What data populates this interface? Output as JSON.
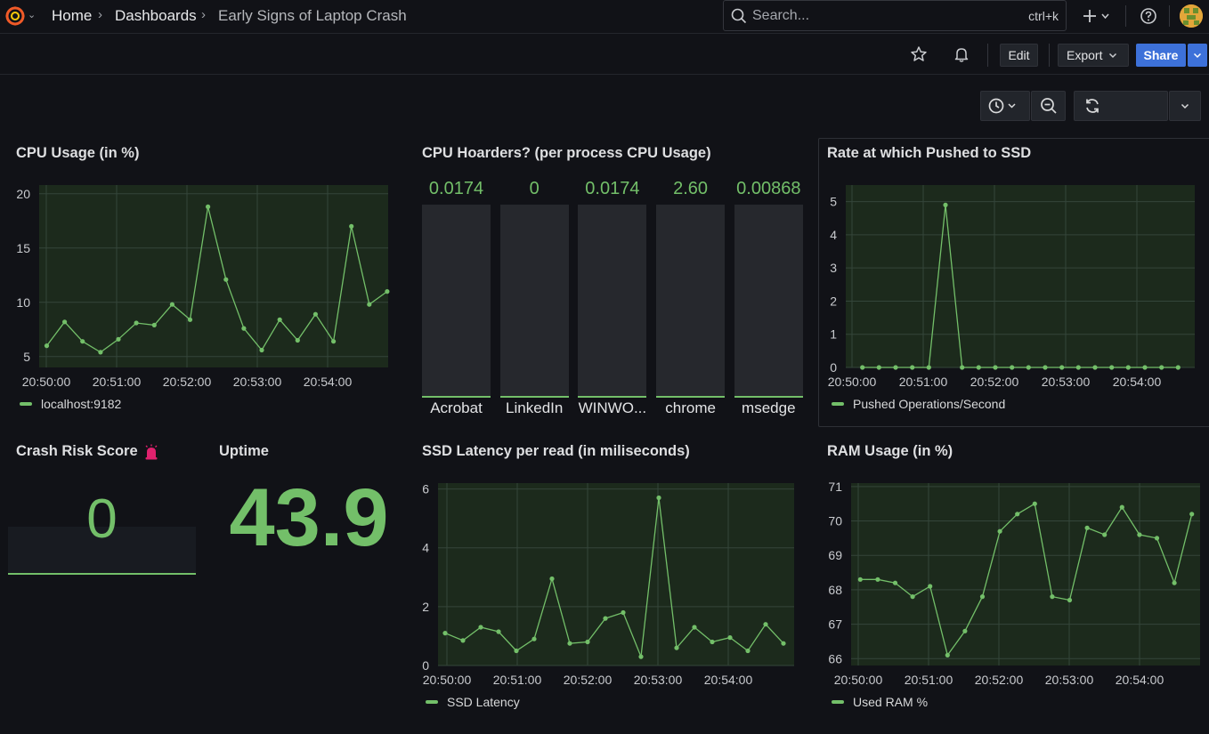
{
  "breadcrumb": {
    "home": "Home",
    "dashboards": "Dashboards",
    "current": "Early Signs of Laptop Crash"
  },
  "search": {
    "placeholder": "Search...",
    "shortcut": "ctrl+k"
  },
  "icons": {
    "logo": "grafana-logo-icon",
    "search": "search-icon",
    "add": "plus-icon",
    "help": "help-icon",
    "star": "star-icon",
    "bell": "bell-icon",
    "time": "clock-icon",
    "zoom": "zoom-out-icon",
    "refresh": "refresh-icon"
  },
  "toolbar": {
    "edit_label": "Edit",
    "export_label": "Export",
    "share_label": "Share"
  },
  "colors": {
    "series": "#73bf69",
    "background": "#111217",
    "accent": "#3d71d9",
    "plot_bg": "#1c2a1c"
  },
  "panels": {
    "cpu_usage": {
      "title": "CPU Usage (in %)",
      "legend": "localhost:9182"
    },
    "cpu_hoarders": {
      "title": "CPU Hoarders? (per process CPU Usage)"
    },
    "rate_ssd": {
      "title": "Rate at which Pushed to SSD",
      "legend": "Pushed Operations/Second"
    },
    "crash_risk": {
      "title": "Crash Risk Score",
      "value": "0"
    },
    "uptime": {
      "title": "Uptime",
      "value": "43.9"
    },
    "ssd_latency": {
      "title": "SSD Latency per read (in miliseconds)",
      "legend": "SSD Latency"
    },
    "ram_usage": {
      "title": "RAM Usage (in %)",
      "legend": "Used RAM %"
    }
  },
  "chart_data": [
    {
      "type": "line",
      "title": "CPU Usage (in %)",
      "x_ticks": [
        "20:50:00",
        "20:51:00",
        "20:52:00",
        "20:53:00",
        "20:54:00"
      ],
      "y_ticks": [
        5,
        10,
        15,
        20
      ],
      "ylim": [
        4,
        20.8
      ],
      "xlim": [
        0,
        37
      ],
      "series": [
        {
          "name": "localhost:9182",
          "values": [
            6.0,
            8.2,
            6.4,
            5.4,
            6.6,
            8.1,
            7.9,
            9.8,
            8.4,
            18.8,
            12.1,
            7.6,
            5.6,
            8.4,
            6.5,
            8.9,
            6.4,
            17.0,
            9.8,
            11.0
          ]
        }
      ]
    },
    {
      "type": "bar",
      "title": "CPU Hoarders? (per process CPU Usage)",
      "categories": [
        "Acrobat",
        "LinkedIn",
        "WINWO...",
        "chrome",
        "msedge"
      ],
      "display_values": [
        "0.0174",
        "0",
        "0.0174",
        "2.60",
        "0.00868"
      ],
      "values": [
        0.0174,
        0,
        0.0174,
        2.6,
        0.00868
      ]
    },
    {
      "type": "line",
      "title": "Rate at which Pushed to SSD",
      "x_ticks": [
        "20:50:00",
        "20:51:00",
        "20:52:00",
        "20:53:00",
        "20:54:00"
      ],
      "y_ticks": [
        0,
        1,
        2,
        3,
        4,
        5
      ],
      "ylim": [
        0,
        5.5
      ],
      "xlim": [
        0,
        21
      ],
      "series": [
        {
          "name": "Pushed Operations/Second",
          "values": [
            0,
            0,
            0,
            0,
            0,
            4.9,
            0,
            0,
            0,
            0,
            0,
            0,
            0,
            0,
            0,
            0,
            0,
            0,
            0,
            0
          ]
        }
      ]
    },
    {
      "type": "line",
      "title": "SSD Latency per read (in miliseconds)",
      "x_ticks": [
        "20:50:00",
        "20:51:00",
        "20:52:00",
        "20:53:00",
        "20:54:00"
      ],
      "y_ticks": [
        0,
        2,
        4,
        6
      ],
      "ylim": [
        0,
        6.2
      ],
      "xlim": [
        0,
        40
      ],
      "series": [
        {
          "name": "SSD Latency",
          "values": [
            1.1,
            0.85,
            1.3,
            1.15,
            0.5,
            0.9,
            2.95,
            0.75,
            0.8,
            1.6,
            1.8,
            0.3,
            5.7,
            0.6,
            1.3,
            0.8,
            0.95,
            0.5,
            1.4,
            0.75
          ]
        }
      ]
    },
    {
      "type": "line",
      "title": "RAM Usage (in %)",
      "x_ticks": [
        "20:50:00",
        "20:51:00",
        "20:52:00",
        "20:53:00",
        "20:54:00"
      ],
      "y_ticks": [
        66,
        67,
        68,
        69,
        70,
        71
      ],
      "ylim": [
        65.8,
        71.1
      ],
      "xlim": [
        0,
        38
      ],
      "series": [
        {
          "name": "Used RAM %",
          "values": [
            68.3,
            68.3,
            68.2,
            67.8,
            68.1,
            66.1,
            66.8,
            67.8,
            69.7,
            70.2,
            70.5,
            67.8,
            67.7,
            69.8,
            69.6,
            70.4,
            69.6,
            69.5,
            68.2,
            70.2
          ]
        }
      ]
    }
  ]
}
